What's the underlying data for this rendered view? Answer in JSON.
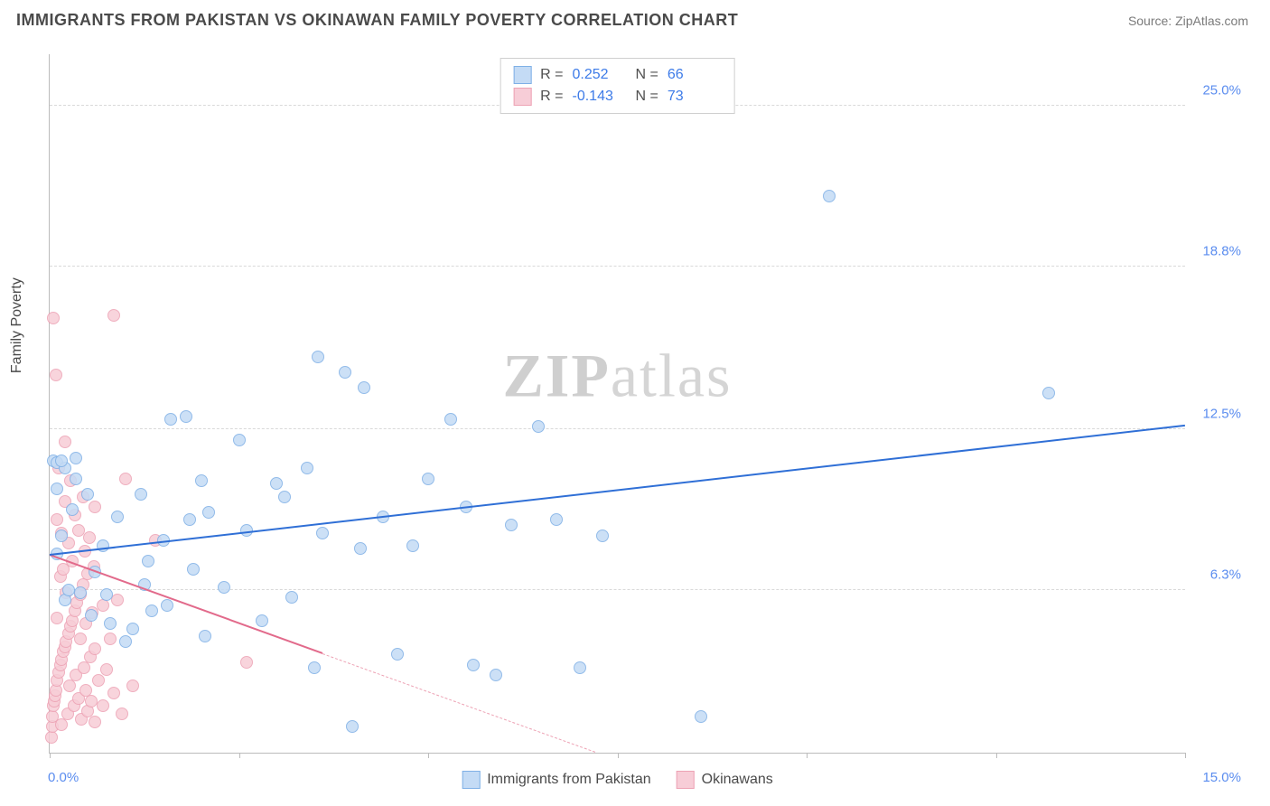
{
  "title": "IMMIGRANTS FROM PAKISTAN VS OKINAWAN FAMILY POVERTY CORRELATION CHART",
  "source_label": "Source: ",
  "source_value": "ZipAtlas.com",
  "ylabel": "Family Poverty",
  "watermark_bold": "ZIP",
  "watermark_light": "atlas",
  "chart": {
    "type": "scatter",
    "background_color": "#ffffff",
    "grid_color": "#d9d9d9",
    "axis_color": "#bcbcbc",
    "xlim": [
      0,
      15
    ],
    "ylim": [
      0,
      27
    ],
    "yticks": [
      {
        "v": 6.3,
        "label": "6.3%"
      },
      {
        "v": 12.5,
        "label": "12.5%"
      },
      {
        "v": 18.8,
        "label": "18.8%"
      },
      {
        "v": 25.0,
        "label": "25.0%"
      }
    ],
    "xticks": [
      0,
      2.5,
      5.0,
      7.5,
      10.0,
      12.5,
      15.0
    ],
    "xaxis_end_labels": {
      "left": "0.0%",
      "right": "15.0%"
    },
    "series": [
      {
        "name": "Immigrants from Pakistan",
        "fill": "#c4dbf5",
        "stroke": "#7fb0e6",
        "line_color": "#2f6fd6",
        "r_value": "0.252",
        "n_value": "66",
        "trend": {
          "x1": 0,
          "y1": 7.6,
          "x2": 15,
          "y2": 12.6,
          "dashed_from_x": null
        },
        "points": [
          [
            0.05,
            11.3
          ],
          [
            0.1,
            7.7
          ],
          [
            0.1,
            10.2
          ],
          [
            0.1,
            11.2
          ],
          [
            0.15,
            8.4
          ],
          [
            0.2,
            5.9
          ],
          [
            0.2,
            11.0
          ],
          [
            0.25,
            6.3
          ],
          [
            0.3,
            9.4
          ],
          [
            0.35,
            11.4
          ],
          [
            0.4,
            6.2
          ],
          [
            0.5,
            10.0
          ],
          [
            0.55,
            5.3
          ],
          [
            0.6,
            7.0
          ],
          [
            0.7,
            8.0
          ],
          [
            0.75,
            6.1
          ],
          [
            0.8,
            5.0
          ],
          [
            0.9,
            9.1
          ],
          [
            1.0,
            4.3
          ],
          [
            1.1,
            4.8
          ],
          [
            1.2,
            10.0
          ],
          [
            1.25,
            6.5
          ],
          [
            1.3,
            7.4
          ],
          [
            1.35,
            5.5
          ],
          [
            1.5,
            8.2
          ],
          [
            1.55,
            5.7
          ],
          [
            1.6,
            12.9
          ],
          [
            1.8,
            13.0
          ],
          [
            1.85,
            9.0
          ],
          [
            1.9,
            7.1
          ],
          [
            2.0,
            10.5
          ],
          [
            2.05,
            4.5
          ],
          [
            2.1,
            9.3
          ],
          [
            2.3,
            6.4
          ],
          [
            2.5,
            12.1
          ],
          [
            2.6,
            8.6
          ],
          [
            2.8,
            5.1
          ],
          [
            3.0,
            10.4
          ],
          [
            3.1,
            9.9
          ],
          [
            3.2,
            6.0
          ],
          [
            3.4,
            11.0
          ],
          [
            3.5,
            3.3
          ],
          [
            3.55,
            15.3
          ],
          [
            3.6,
            8.5
          ],
          [
            3.9,
            14.7
          ],
          [
            4.0,
            1.0
          ],
          [
            4.1,
            7.9
          ],
          [
            4.15,
            14.1
          ],
          [
            4.4,
            9.1
          ],
          [
            4.6,
            3.8
          ],
          [
            4.8,
            8.0
          ],
          [
            5.0,
            10.6
          ],
          [
            5.3,
            12.9
          ],
          [
            5.5,
            9.5
          ],
          [
            5.6,
            3.4
          ],
          [
            5.9,
            3.0
          ],
          [
            6.1,
            8.8
          ],
          [
            6.45,
            12.6
          ],
          [
            6.7,
            9.0
          ],
          [
            7.0,
            3.3
          ],
          [
            7.3,
            8.4
          ],
          [
            8.6,
            1.4
          ],
          [
            10.3,
            21.5
          ],
          [
            13.2,
            13.9
          ],
          [
            0.15,
            11.3
          ],
          [
            0.35,
            10.6
          ]
        ]
      },
      {
        "name": "Okinawans",
        "fill": "#f7cdd7",
        "stroke": "#eda2b4",
        "line_color": "#e26a8b",
        "r_value": "-0.143",
        "n_value": "73",
        "trend": {
          "x1": 0,
          "y1": 7.6,
          "x2": 7.2,
          "y2": 0,
          "dashed_from_x": 3.6
        },
        "points": [
          [
            0.02,
            0.6
          ],
          [
            0.03,
            1.0
          ],
          [
            0.04,
            1.4
          ],
          [
            0.05,
            1.8
          ],
          [
            0.05,
            16.8
          ],
          [
            0.06,
            2.0
          ],
          [
            0.07,
            2.2
          ],
          [
            0.08,
            2.4
          ],
          [
            0.08,
            14.6
          ],
          [
            0.1,
            2.8
          ],
          [
            0.1,
            5.2
          ],
          [
            0.1,
            9.0
          ],
          [
            0.12,
            3.1
          ],
          [
            0.12,
            11.0
          ],
          [
            0.14,
            3.4
          ],
          [
            0.14,
            6.8
          ],
          [
            0.15,
            3.6
          ],
          [
            0.15,
            8.5
          ],
          [
            0.16,
            1.1
          ],
          [
            0.18,
            3.9
          ],
          [
            0.18,
            7.1
          ],
          [
            0.2,
            4.1
          ],
          [
            0.2,
            9.7
          ],
          [
            0.2,
            12.0
          ],
          [
            0.22,
            4.3
          ],
          [
            0.22,
            6.2
          ],
          [
            0.24,
            1.5
          ],
          [
            0.25,
            4.6
          ],
          [
            0.25,
            8.1
          ],
          [
            0.26,
            2.6
          ],
          [
            0.28,
            4.9
          ],
          [
            0.28,
            10.5
          ],
          [
            0.3,
            5.1
          ],
          [
            0.3,
            7.4
          ],
          [
            0.32,
            1.8
          ],
          [
            0.34,
            5.5
          ],
          [
            0.34,
            9.2
          ],
          [
            0.35,
            3.0
          ],
          [
            0.36,
            5.8
          ],
          [
            0.38,
            2.1
          ],
          [
            0.38,
            8.6
          ],
          [
            0.4,
            6.1
          ],
          [
            0.4,
            4.4
          ],
          [
            0.42,
            1.3
          ],
          [
            0.44,
            6.5
          ],
          [
            0.44,
            9.9
          ],
          [
            0.45,
            3.3
          ],
          [
            0.46,
            7.8
          ],
          [
            0.48,
            2.4
          ],
          [
            0.48,
            5.0
          ],
          [
            0.5,
            6.9
          ],
          [
            0.5,
            1.6
          ],
          [
            0.52,
            8.3
          ],
          [
            0.54,
            3.7
          ],
          [
            0.55,
            2.0
          ],
          [
            0.56,
            5.4
          ],
          [
            0.58,
            7.2
          ],
          [
            0.6,
            1.2
          ],
          [
            0.6,
            4.0
          ],
          [
            0.6,
            9.5
          ],
          [
            0.65,
            2.8
          ],
          [
            0.7,
            5.7
          ],
          [
            0.7,
            1.8
          ],
          [
            0.75,
            3.2
          ],
          [
            0.8,
            4.4
          ],
          [
            0.85,
            2.3
          ],
          [
            0.85,
            16.9
          ],
          [
            0.9,
            5.9
          ],
          [
            0.95,
            1.5
          ],
          [
            1.0,
            10.6
          ],
          [
            1.1,
            2.6
          ],
          [
            2.6,
            3.5
          ],
          [
            1.4,
            8.2
          ]
        ]
      }
    ],
    "marker_radius": 7,
    "label_fontsize": 16,
    "title_fontsize": 18
  },
  "legend_bottom": [
    {
      "label": "Immigrants from Pakistan",
      "fill": "#c4dbf5",
      "stroke": "#7fb0e6"
    },
    {
      "label": "Okinawans",
      "fill": "#f7cdd7",
      "stroke": "#eda2b4"
    }
  ]
}
